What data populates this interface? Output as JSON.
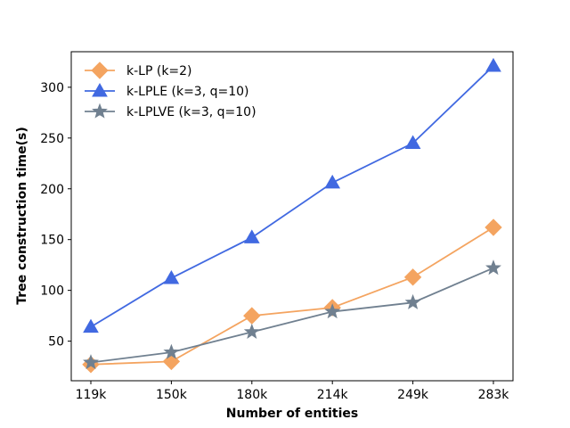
{
  "chart_data": {
    "type": "line",
    "title": "",
    "xlabel": "Number of entities",
    "ylabel": "Tree construction time(s)",
    "categories": [
      "119k",
      "150k",
      "180k",
      "214k",
      "249k",
      "283k"
    ],
    "yticks": [
      50,
      100,
      150,
      200,
      250,
      300
    ],
    "ylim": [
      11,
      335
    ],
    "grid": false,
    "legend_position": "top-left",
    "series": [
      {
        "name": "k-LP (k=2)",
        "color": "#f4a460",
        "marker": "diamond",
        "values": [
          27,
          30,
          75,
          83,
          113,
          162
        ]
      },
      {
        "name": "k-LPLE (k=3, q=10)",
        "color": "#4169e1",
        "marker": "triangle",
        "values": [
          64,
          112,
          152,
          206,
          245,
          321
        ]
      },
      {
        "name": "k-LPLVE (k=3, q=10)",
        "color": "#708090",
        "marker": "star",
        "values": [
          29,
          39,
          59,
          79,
          88,
          122
        ]
      }
    ]
  }
}
